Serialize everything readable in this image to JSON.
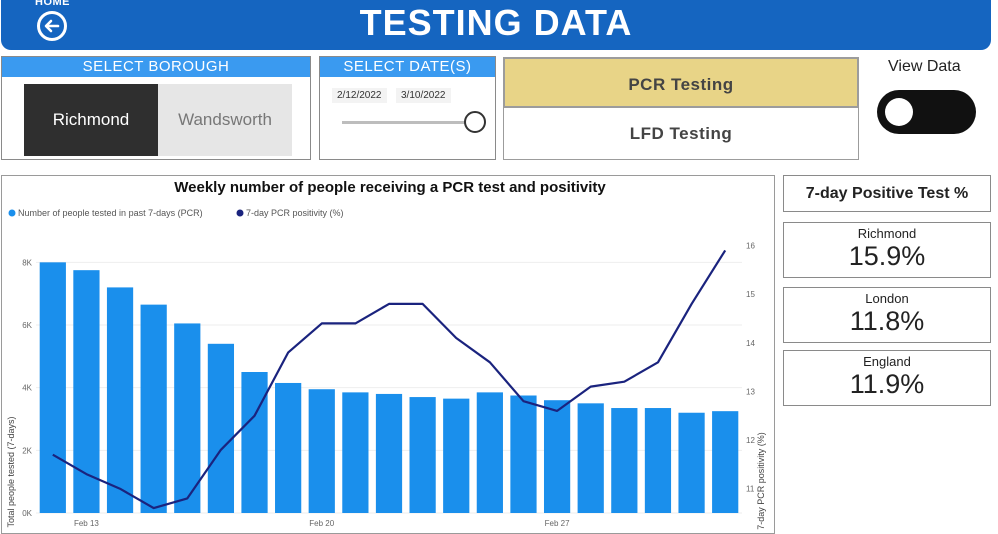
{
  "header": {
    "home_label": "HOME",
    "title": "TESTING DATA",
    "home_icon": "back-arrow-circle-icon"
  },
  "borough_filter": {
    "title": "SELECT BOROUGH",
    "options": [
      "Richmond",
      "Wandsworth"
    ],
    "selected": "Richmond"
  },
  "date_filter": {
    "title": "SELECT DATE(S)",
    "start": "2/12/2022",
    "end": "3/10/2022"
  },
  "test_type": {
    "options": [
      "PCR Testing",
      "LFD Testing"
    ],
    "selected": "PCR Testing"
  },
  "view_toggle": {
    "label": "View Data",
    "state": "off"
  },
  "colors": {
    "header": "#1565c0",
    "bar": "#1a8fec",
    "line": "#1a237e",
    "selected_test": "#e8d487"
  },
  "stats": {
    "title": "7-day Positive Test %",
    "items": [
      {
        "label": "Richmond",
        "value": "15.9%"
      },
      {
        "label": "London",
        "value": "11.8%"
      },
      {
        "label": "England",
        "value": "11.9%"
      }
    ]
  },
  "chart_data": {
    "type": "bar+line",
    "title": "Weekly number of people receiving a PCR test and positivity",
    "legend": [
      "Number of people tested in past 7-days (PCR)",
      "7-day PCR positivity (%)"
    ],
    "legend_position": "top-left",
    "ylabel": "Total people tested (7-days)",
    "y2label": "7-day PCR positivity (%)",
    "ylim": [
      0,
      9000
    ],
    "y2lim": [
      10.5,
      16.3
    ],
    "y_ticks": [
      "0K",
      "2K",
      "4K",
      "6K",
      "8K"
    ],
    "y2_ticks": [
      "11",
      "12",
      "13",
      "14",
      "15",
      "16"
    ],
    "x_labels": [
      {
        "index": 1,
        "label": "Feb 13"
      },
      {
        "index": 8,
        "label": "Feb 20"
      },
      {
        "index": 15,
        "label": "Feb 27"
      }
    ],
    "series": [
      {
        "name": "Number of people tested in past 7-days (PCR)",
        "type": "bar",
        "values": [
          8000,
          7750,
          7200,
          6650,
          6050,
          5400,
          4500,
          4150,
          3950,
          3850,
          3800,
          3700,
          3650,
          3850,
          3750,
          3600,
          3500,
          3350,
          3350,
          3200,
          3250
        ]
      },
      {
        "name": "7-day PCR positivity (%)",
        "type": "line",
        "values": [
          11.7,
          11.3,
          11.0,
          10.6,
          10.8,
          11.8,
          12.5,
          13.8,
          14.4,
          14.4,
          14.8,
          14.8,
          14.1,
          13.6,
          12.8,
          12.6,
          13.1,
          13.2,
          13.6,
          14.8,
          15.9
        ]
      }
    ]
  }
}
